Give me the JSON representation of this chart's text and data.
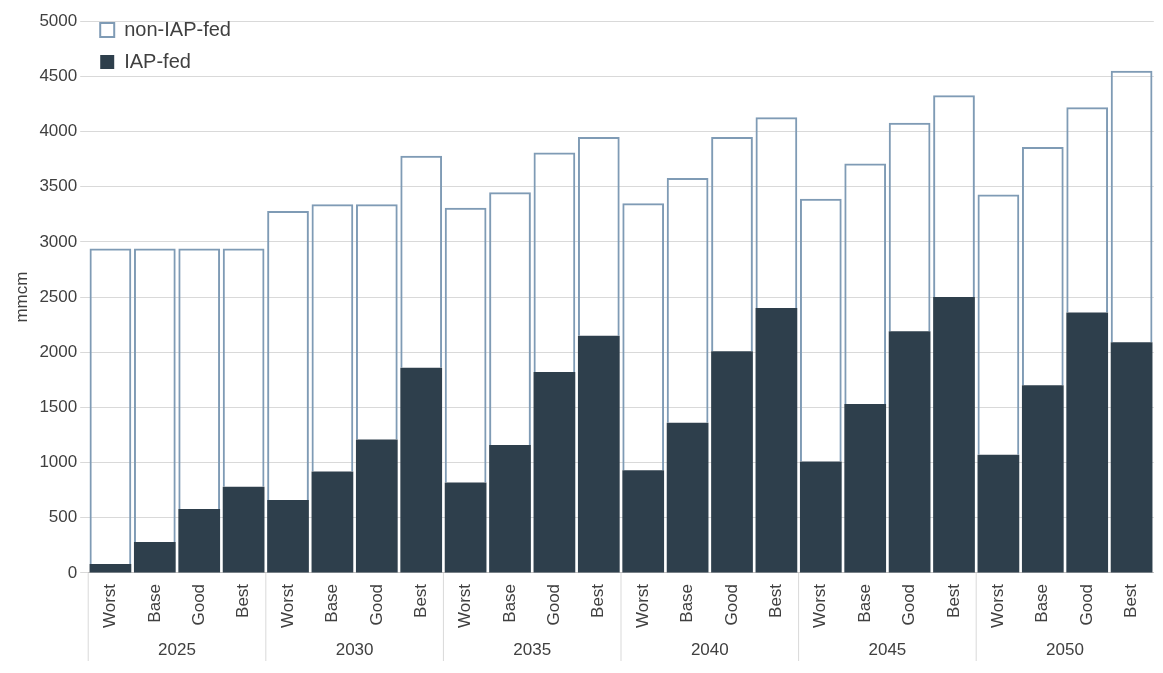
{
  "chart_data": {
    "type": "bar",
    "ylabel": "mmcm",
    "stacked": true,
    "grid": "y",
    "legend": "top left",
    "categories": [
      "Worst",
      "Base",
      "Good",
      "Best",
      "Worst",
      "Base",
      "Good",
      "Best",
      "Worst",
      "Base",
      "Good",
      "Best",
      "Worst",
      "Base",
      "Good",
      "Best",
      "Worst",
      "Base",
      "Good",
      "Best",
      "Worst",
      "Base",
      "Good",
      "Best"
    ],
    "annotations": [
      "2025",
      "2030",
      "2035",
      "2040",
      "2045",
      "2050"
    ],
    "ylim": [
      0,
      5000
    ],
    "yticks": [
      0,
      500,
      1000,
      1500,
      2000,
      2500,
      3000,
      3500,
      4000,
      4500,
      5000
    ],
    "series": [
      {
        "name": "IAP-fed",
        "color": "#2e3f4c",
        "values": [
          80,
          280,
          580,
          780,
          660,
          920,
          1210,
          1860,
          820,
          1160,
          1820,
          2150,
          930,
          1360,
          2010,
          2400,
          1010,
          1530,
          2190,
          2500,
          1070,
          1700,
          2360,
          2090
        ]
      },
      {
        "name": "non-IAP-fed",
        "color": "#7f9bb5",
        "line_style": "dashed",
        "values": [
          2860,
          2660,
          2360,
          2160,
          2620,
          2420,
          2130,
          1920,
          2490,
          2290,
          1990,
          1800,
          2420,
          2220,
          1940,
          1730,
          2380,
          2180,
          1890,
          1830,
          2360,
          2160,
          1860,
          2460
        ]
      }
    ]
  }
}
